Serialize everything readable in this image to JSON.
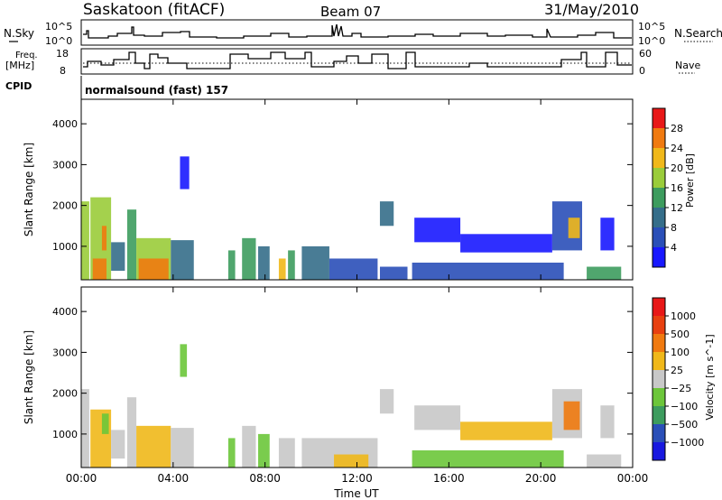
{
  "header": {
    "station": "Saskatoon (fitACF)",
    "beam": "Beam 07",
    "date": "31/May/2010"
  },
  "nsky_panel": {
    "label_left": "N.Sky",
    "label_right": "N.Search",
    "tick_top_left": "10^5",
    "tick_bottom_left": "10^0",
    "tick_top_right": "10^5",
    "tick_bottom_right": "10^0"
  },
  "freq_panel": {
    "label_left_1": "Freq.",
    "label_left_2": "[MHz]",
    "label_right": "Nave",
    "left_ticks": [
      "18",
      "8"
    ],
    "right_ticks": [
      "60",
      "0"
    ]
  },
  "cpid": {
    "label": "CPID",
    "text": "normalsound (fast) 157"
  },
  "chart_data": [
    {
      "type": "heatmap",
      "quantity": "Power",
      "ylabel": "Slant Range [km]",
      "ylim": [
        180,
        4600
      ],
      "y_ticks": [
        1000,
        2000,
        3000,
        4000
      ],
      "x_ticks_hours": [
        0,
        4,
        8,
        12,
        16,
        20,
        24
      ],
      "colorbar": {
        "label": "Power [dB]",
        "ticks": [
          "4",
          "8",
          "12",
          "16",
          "20",
          "24",
          "28"
        ],
        "colors": [
          "#1818ff",
          "#2a4fb8",
          "#356e8a",
          "#3d9c5e",
          "#9acc3a",
          "#f0b81a",
          "#f07a10",
          "#e81818"
        ]
      },
      "cells": [
        {
          "t0": 0.0,
          "t1": 0.35,
          "r0": 180,
          "r1": 2100,
          "level": 4
        },
        {
          "t0": 0.4,
          "t1": 1.3,
          "r0": 180,
          "r1": 2200,
          "level": 4
        },
        {
          "t0": 0.5,
          "t1": 1.1,
          "r0": 180,
          "r1": 700,
          "level": 6
        },
        {
          "t0": 0.9,
          "t1": 1.1,
          "r0": 900,
          "r1": 1500,
          "level": 6
        },
        {
          "t0": 1.3,
          "t1": 1.9,
          "r0": 400,
          "r1": 1100,
          "level": 2
        },
        {
          "t0": 2.0,
          "t1": 2.4,
          "r0": 180,
          "r1": 1900,
          "level": 3
        },
        {
          "t0": 2.4,
          "t1": 3.9,
          "r0": 180,
          "r1": 1200,
          "level": 4
        },
        {
          "t0": 2.5,
          "t1": 3.8,
          "r0": 180,
          "r1": 700,
          "level": 6
        },
        {
          "t0": 3.9,
          "t1": 4.9,
          "r0": 180,
          "r1": 1150,
          "level": 2
        },
        {
          "t0": 4.3,
          "t1": 4.7,
          "r0": 2400,
          "r1": 3200,
          "level": 0
        },
        {
          "t0": 6.4,
          "t1": 6.7,
          "r0": 180,
          "r1": 900,
          "level": 3
        },
        {
          "t0": 7.0,
          "t1": 7.6,
          "r0": 180,
          "r1": 1200,
          "level": 3
        },
        {
          "t0": 7.7,
          "t1": 8.2,
          "r0": 180,
          "r1": 1000,
          "level": 2
        },
        {
          "t0": 8.6,
          "t1": 8.9,
          "r0": 180,
          "r1": 700,
          "level": 5
        },
        {
          "t0": 9.0,
          "t1": 9.3,
          "r0": 180,
          "r1": 900,
          "level": 3
        },
        {
          "t0": 9.6,
          "t1": 10.8,
          "r0": 180,
          "r1": 1000,
          "level": 2
        },
        {
          "t0": 10.8,
          "t1": 12.9,
          "r0": 180,
          "r1": 700,
          "level": 1
        },
        {
          "t0": 13.0,
          "t1": 13.6,
          "r0": 1500,
          "r1": 2100,
          "level": 2
        },
        {
          "t0": 13.0,
          "t1": 14.2,
          "r0": 180,
          "r1": 500,
          "level": 1
        },
        {
          "t0": 14.4,
          "t1": 21.0,
          "r0": 180,
          "r1": 600,
          "level": 1
        },
        {
          "t0": 14.5,
          "t1": 16.5,
          "r0": 1100,
          "r1": 1700,
          "level": 0
        },
        {
          "t0": 16.5,
          "t1": 20.5,
          "r0": 850,
          "r1": 1300,
          "level": 0
        },
        {
          "t0": 20.5,
          "t1": 21.8,
          "r0": 900,
          "r1": 2100,
          "level": 1
        },
        {
          "t0": 21.2,
          "t1": 21.7,
          "r0": 1200,
          "r1": 1700,
          "level": 5
        },
        {
          "t0": 22.6,
          "t1": 23.2,
          "r0": 900,
          "r1": 1700,
          "level": 0
        },
        {
          "t0": 22.0,
          "t1": 23.5,
          "r0": 180,
          "r1": 500,
          "level": 3
        }
      ]
    },
    {
      "type": "heatmap",
      "quantity": "Velocity",
      "ylabel": "Slant Range [km]",
      "xlabel": "Time UT",
      "ylim": [
        180,
        4600
      ],
      "y_ticks": [
        1000,
        2000,
        3000,
        4000
      ],
      "x_ticks": [
        "00:00",
        "04:00",
        "08:00",
        "12:00",
        "16:00",
        "20:00",
        "00:00"
      ],
      "x_ticks_hours": [
        0,
        4,
        8,
        12,
        16,
        20,
        24
      ],
      "colorbar": {
        "label": "Velocity [m s^-1]",
        "ticks": [
          "1000",
          "500",
          "100",
          "25",
          "−25",
          "−100",
          "−500",
          "−1000"
        ],
        "colors": [
          "#1818e0",
          "#2a4fb8",
          "#3d9c5e",
          "#6cc63a",
          "#c8c8c8",
          "#f0b81a",
          "#f07a10",
          "#e84010",
          "#e81818"
        ]
      },
      "cells": [
        {
          "t0": 0.0,
          "t1": 0.35,
          "r0": 180,
          "r1": 2100,
          "level": 4
        },
        {
          "t0": 0.4,
          "t1": 1.3,
          "r0": 180,
          "r1": 1600,
          "level": 5
        },
        {
          "t0": 0.9,
          "t1": 1.2,
          "r0": 1000,
          "r1": 1500,
          "level": 3
        },
        {
          "t0": 1.3,
          "t1": 1.9,
          "r0": 400,
          "r1": 1100,
          "level": 4
        },
        {
          "t0": 2.0,
          "t1": 2.4,
          "r0": 180,
          "r1": 1900,
          "level": 4
        },
        {
          "t0": 2.4,
          "t1": 3.9,
          "r0": 180,
          "r1": 1200,
          "level": 5
        },
        {
          "t0": 3.9,
          "t1": 4.9,
          "r0": 180,
          "r1": 1150,
          "level": 4
        },
        {
          "t0": 4.3,
          "t1": 4.6,
          "r0": 2400,
          "r1": 3200,
          "level": 3
        },
        {
          "t0": 6.4,
          "t1": 6.7,
          "r0": 180,
          "r1": 900,
          "level": 3
        },
        {
          "t0": 7.0,
          "t1": 7.6,
          "r0": 180,
          "r1": 1200,
          "level": 4
        },
        {
          "t0": 7.7,
          "t1": 8.2,
          "r0": 180,
          "r1": 1000,
          "level": 3
        },
        {
          "t0": 8.6,
          "t1": 9.3,
          "r0": 180,
          "r1": 900,
          "level": 4
        },
        {
          "t0": 9.6,
          "t1": 12.9,
          "r0": 180,
          "r1": 900,
          "level": 4
        },
        {
          "t0": 11.0,
          "t1": 12.5,
          "r0": 180,
          "r1": 500,
          "level": 5
        },
        {
          "t0": 13.0,
          "t1": 13.6,
          "r0": 1500,
          "r1": 2100,
          "level": 4
        },
        {
          "t0": 14.4,
          "t1": 21.0,
          "r0": 180,
          "r1": 600,
          "level": 3
        },
        {
          "t0": 14.5,
          "t1": 16.5,
          "r0": 1100,
          "r1": 1700,
          "level": 4
        },
        {
          "t0": 16.5,
          "t1": 20.5,
          "r0": 850,
          "r1": 1300,
          "level": 5
        },
        {
          "t0": 20.5,
          "t1": 21.8,
          "r0": 900,
          "r1": 2100,
          "level": 4
        },
        {
          "t0": 21.0,
          "t1": 21.7,
          "r0": 1100,
          "r1": 1800,
          "level": 6
        },
        {
          "t0": 22.6,
          "t1": 23.2,
          "r0": 900,
          "r1": 1700,
          "level": 4
        },
        {
          "t0": 22.0,
          "t1": 23.5,
          "r0": 180,
          "r1": 500,
          "level": 4
        }
      ]
    }
  ]
}
